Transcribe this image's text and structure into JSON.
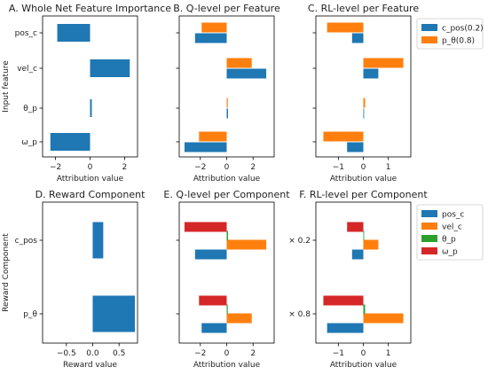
{
  "colors": {
    "blue": "#1f77b4",
    "orange": "#ff7f0e",
    "green": "#2ca02c",
    "red": "#d62728",
    "axis": "#000000"
  },
  "chart_data": [
    {
      "type": "bar",
      "orientation": "horizontal",
      "title": "A. Whole Net Feature Importance",
      "xlabel": "Attribution value",
      "ylabel": "Input feature",
      "categories": [
        "pos_c",
        "vel_c",
        "θ_p",
        "ω_p"
      ],
      "series": [
        {
          "color": "blue",
          "values": [
            -1.9,
            2.3,
            0.1,
            -2.3
          ]
        }
      ],
      "xlim": [
        -2.75,
        2.75
      ],
      "xticks": [
        {
          "value": -2,
          "label": "−2"
        },
        {
          "value": 0,
          "label": "0"
        },
        {
          "value": 2,
          "label": "2"
        }
      ]
    },
    {
      "type": "bar",
      "orientation": "horizontal",
      "title": "B. Q-level per Feature",
      "xlabel": "Attribution value",
      "categories": [
        "pos_c",
        "vel_c",
        "θ_p",
        "ω_p"
      ],
      "series": [
        {
          "color": "blue",
          "values": [
            -2.4,
            3.0,
            0.1,
            -3.2
          ]
        },
        {
          "color": "orange",
          "values": [
            -1.9,
            1.9,
            0.08,
            -2.1
          ]
        }
      ],
      "xlim": [
        -3.6,
        3.6
      ],
      "xticks": [
        {
          "value": -2,
          "label": "−2"
        },
        {
          "value": 0,
          "label": "0"
        },
        {
          "value": 2,
          "label": "2"
        }
      ]
    },
    {
      "type": "bar",
      "orientation": "horizontal",
      "title": "C. RL-level per Feature",
      "xlabel": "Attribution value",
      "categories": [
        "pos_c",
        "vel_c",
        "θ_p",
        "ω_p"
      ],
      "legend": [
        "c_pos(0.2)",
        "p_θ(0.8)"
      ],
      "series": [
        {
          "name": "c_pos(0.2)",
          "color": "blue",
          "values": [
            -0.45,
            0.6,
            0.03,
            -0.65
          ]
        },
        {
          "name": "p_θ(0.8)",
          "color": "orange",
          "values": [
            -1.45,
            1.6,
            0.07,
            -1.6
          ]
        }
      ],
      "xlim": [
        -1.9,
        1.9
      ],
      "xticks": [
        {
          "value": -1,
          "label": "−1"
        },
        {
          "value": 0,
          "label": "0"
        },
        {
          "value": 1,
          "label": "1"
        }
      ]
    },
    {
      "type": "bar",
      "orientation": "horizontal",
      "title": "D. Reward Component",
      "xlabel": "Reward value",
      "ylabel": "Reward Component",
      "categories": [
        "c_pos",
        "p_θ"
      ],
      "series": [
        {
          "color": "blue",
          "values": [
            0.2,
            0.8
          ]
        }
      ],
      "xlim": [
        -0.95,
        0.85
      ],
      "xticks": [
        {
          "value": -0.5,
          "label": "−0.5"
        },
        {
          "value": 0,
          "label": "0.0"
        },
        {
          "value": 0.5,
          "label": "0.5"
        }
      ]
    },
    {
      "type": "bar",
      "orientation": "horizontal",
      "title": "E. Q-level per Component",
      "xlabel": "Attribution value",
      "categories": [
        "c_pos",
        "p_θ"
      ],
      "series": [
        {
          "color": "blue",
          "values": [
            -2.4,
            -1.9
          ]
        },
        {
          "color": "orange",
          "values": [
            3.0,
            1.9
          ]
        },
        {
          "color": "green",
          "values": [
            0.1,
            0.08
          ]
        },
        {
          "color": "red",
          "values": [
            -3.2,
            -2.1
          ]
        }
      ],
      "xlim": [
        -3.6,
        3.6
      ],
      "xticks": [
        {
          "value": -2,
          "label": "−2"
        },
        {
          "value": 0,
          "label": "0"
        },
        {
          "value": 2,
          "label": "2"
        }
      ]
    },
    {
      "type": "bar",
      "orientation": "horizontal",
      "title": "F. RL-level per Component",
      "xlabel": "Attribution value",
      "categories": [
        "× 0.2",
        "× 0.8"
      ],
      "legend": [
        "pos_c",
        "vel_c",
        "θ_p",
        "ω_p"
      ],
      "series": [
        {
          "name": "pos_c",
          "color": "blue",
          "values": [
            -0.45,
            -1.45
          ]
        },
        {
          "name": "vel_c",
          "color": "orange",
          "values": [
            0.6,
            1.6
          ]
        },
        {
          "name": "θ_p",
          "color": "green",
          "values": [
            0.03,
            0.07
          ]
        },
        {
          "name": "ω_p",
          "color": "red",
          "values": [
            -0.65,
            -1.6
          ]
        }
      ],
      "xlim": [
        -1.9,
        1.9
      ],
      "xticks": [
        {
          "value": -1,
          "label": "−1"
        },
        {
          "value": 0,
          "label": "0"
        },
        {
          "value": 1,
          "label": "1"
        }
      ]
    }
  ]
}
